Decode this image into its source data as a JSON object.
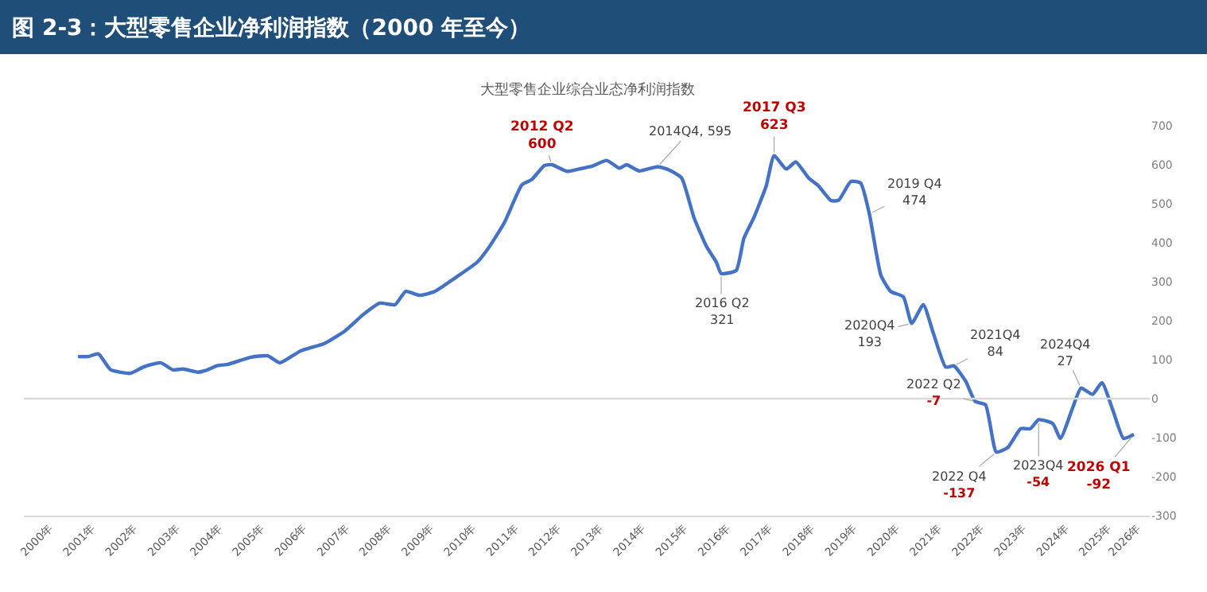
{
  "chart_data": {
    "type": "line",
    "title": "图 2-3：大型零售企业净利润指数（2000 年至今）",
    "subtitle": "大型零售企业综合业态净利润指数",
    "x": [
      2001.18,
      2001.42,
      2001.66,
      2001.95,
      2002.42,
      2002.72,
      2003.13,
      2003.42,
      2003.66,
      2004.01,
      2004.19,
      2004.48,
      2004.72,
      2005.25,
      2005.66,
      2005.95,
      2006.43,
      2007.01,
      2007.49,
      2007.9,
      2008.31,
      2008.67,
      2008.92,
      2009.25,
      2009.61,
      2010.08,
      2010.61,
      2010.9,
      2011.25,
      2011.67,
      2011.9,
      2012.2,
      2012.375,
      2012.73,
      2013.02,
      2013.32,
      2013.67,
      2013.97,
      2014.14,
      2014.44,
      2014.875,
      2015.14,
      2015.44,
      2015.73,
      2016.03,
      2016.26,
      2016.375,
      2016.73,
      2016.91,
      2017.15,
      2017.44,
      2017.625,
      2017.91,
      2018.14,
      2018.44,
      2018.67,
      2018.97,
      2019.15,
      2019.44,
      2019.67,
      2019.875,
      2020.15,
      2020.38,
      2020.68,
      2020.875,
      2021.15,
      2021.39,
      2021.68,
      2021.875,
      2022.15,
      2022.375,
      2022.62,
      2022.875,
      2023.15,
      2023.45,
      2023.68,
      2023.875,
      2024.21,
      2024.39,
      2024.68,
      2024.875,
      2025.15,
      2025.37,
      2025.63,
      2025.88,
      2026.125
    ],
    "series": [
      {
        "color": "#4472c4",
        "values": [
          108,
          108,
          115,
          74,
          65,
          81,
          92,
          74,
          76,
          68,
          72,
          85,
          88,
          106,
          110,
          92,
          122,
          142,
          174,
          214,
          245,
          241,
          275,
          265,
          275,
          309,
          350,
          390,
          451,
          549,
          562,
          598,
          600,
          583,
          589,
          596,
          611,
          591,
          600,
          584,
          595,
          587,
          566,
          465,
          390,
          350,
          321,
          329,
          411,
          465,
          546,
          623,
          589,
          607,
          566,
          546,
          508,
          509,
          557,
          553,
          474,
          316,
          275,
          261,
          193,
          241,
          167,
          81,
          84,
          45,
          -7,
          -16,
          -137,
          -125,
          -77,
          -77,
          -54,
          -64,
          -102,
          -23,
          27,
          11,
          41,
          -30,
          -102,
          -92
        ]
      }
    ],
    "xlim": [
      1999.9,
      2026.5
    ],
    "xticks": [
      {
        "value": 2000.5,
        "label": "2000年"
      },
      {
        "value": 2001.5,
        "label": "2001年"
      },
      {
        "value": 2002.5,
        "label": "2002年"
      },
      {
        "value": 2003.5,
        "label": "2003年"
      },
      {
        "value": 2004.5,
        "label": "2004年"
      },
      {
        "value": 2005.5,
        "label": "2005年"
      },
      {
        "value": 2006.5,
        "label": "2006年"
      },
      {
        "value": 2007.5,
        "label": "2007年"
      },
      {
        "value": 2008.5,
        "label": "2008年"
      },
      {
        "value": 2009.5,
        "label": "2009年"
      },
      {
        "value": 2010.5,
        "label": "2010年"
      },
      {
        "value": 2011.5,
        "label": "2011年"
      },
      {
        "value": 2012.5,
        "label": "2012年"
      },
      {
        "value": 2013.5,
        "label": "2013年"
      },
      {
        "value": 2014.5,
        "label": "2014年"
      },
      {
        "value": 2015.5,
        "label": "2015年"
      },
      {
        "value": 2016.5,
        "label": "2016年"
      },
      {
        "value": 2017.5,
        "label": "2017年"
      },
      {
        "value": 2018.5,
        "label": "2018年"
      },
      {
        "value": 2019.5,
        "label": "2019年"
      },
      {
        "value": 2020.5,
        "label": "2020年"
      },
      {
        "value": 2021.5,
        "label": "2021年"
      },
      {
        "value": 2022.5,
        "label": "2022年"
      },
      {
        "value": 2023.5,
        "label": "2023年"
      },
      {
        "value": 2024.5,
        "label": "2024年"
      },
      {
        "value": 2025.5,
        "label": "2025年"
      },
      {
        "value": 2026.2,
        "label": "2026年"
      }
    ],
    "ylim": [
      -300,
      700
    ],
    "yticks": [
      700,
      600,
      500,
      400,
      300,
      200,
      100,
      0,
      -100,
      -200,
      -300
    ],
    "ref_lines": [
      {
        "axis": "y",
        "value": 0,
        "color": "#d9d9d9"
      }
    ],
    "marker": "none",
    "line_style": "solid",
    "annotations": [
      {
        "text": "2012 Q2\n600",
        "x": 2012.375,
        "y": 600
      },
      {
        "text": "2014Q4, 595",
        "x": 2014.875,
        "y": 595
      },
      {
        "text": "2016 Q2\n321",
        "x": 2016.375,
        "y": 321
      },
      {
        "text": "2017 Q3\n623",
        "x": 2017.625,
        "y": 623
      },
      {
        "text": "2019 Q4\n474",
        "x": 2019.875,
        "y": 474
      },
      {
        "text": "2020Q4\n193",
        "x": 2020.875,
        "y": 193
      },
      {
        "text": "2021Q4\n84",
        "x": 2021.875,
        "y": 84
      },
      {
        "text": "2022 Q2\n-7",
        "x": 2022.375,
        "y": -7
      },
      {
        "text": "2022 Q4\n-137",
        "x": 2022.875,
        "y": -137
      },
      {
        "text": "2023Q4\n-54",
        "x": 2023.875,
        "y": -54
      },
      {
        "text": "2024Q4\n27",
        "x": 2024.875,
        "y": 27
      },
      {
        "text": "2026 Q1\n-92",
        "x": 2026.125,
        "y": -92
      }
    ]
  }
}
